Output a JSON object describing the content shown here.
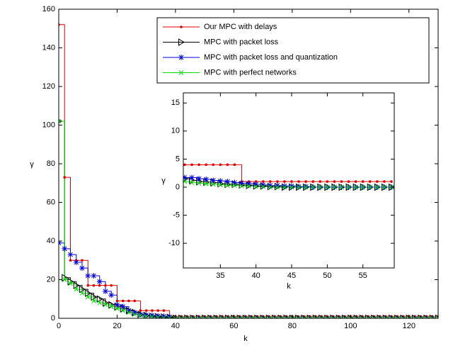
{
  "chart_data": [
    {
      "type": "line",
      "step": true,
      "xlabel": "k",
      "ylabel": "γ",
      "xlim": [
        0,
        130
      ],
      "ylim": [
        0,
        160
      ],
      "xticks": [
        0,
        20,
        40,
        60,
        80,
        100,
        120
      ],
      "yticks": [
        0,
        20,
        40,
        60,
        80,
        100,
        120,
        140,
        160
      ],
      "legend": "northeast",
      "x": [
        0,
        2,
        4,
        6,
        8,
        10,
        12,
        14,
        16,
        18,
        20,
        22,
        24,
        26,
        28,
        30,
        32,
        34,
        36,
        38,
        40,
        42,
        44,
        46,
        48,
        50,
        52,
        54,
        56,
        58,
        60,
        62,
        64,
        66,
        68,
        70,
        72,
        74,
        76,
        78,
        80,
        82,
        84,
        86,
        88,
        90,
        92,
        94,
        96,
        98,
        100,
        102,
        104,
        106,
        108,
        110,
        112,
        114,
        116,
        118,
        120,
        122,
        124,
        126,
        128,
        130
      ],
      "series": [
        {
          "name": "Our MPC with delays",
          "color": "#e00000",
          "marker": "dot",
          "values": [
            152,
            73,
            30,
            30,
            30,
            17,
            17,
            17,
            17,
            17,
            9,
            9,
            9,
            9,
            4,
            4,
            4,
            4,
            4,
            1,
            1,
            1,
            1,
            1,
            1,
            1,
            1,
            1,
            1,
            1,
            1,
            1,
            1,
            1,
            1,
            1,
            1,
            1,
            1,
            1,
            1,
            1,
            1,
            1,
            1,
            1,
            1,
            1,
            1,
            1,
            1,
            1,
            1,
            1,
            1,
            1,
            1,
            1,
            1,
            1,
            1,
            1,
            1,
            1,
            1,
            1
          ]
        },
        {
          "name": "MPC with packet loss",
          "color": "#000000",
          "marker": "triangle",
          "values": [
            102,
            21,
            19,
            17,
            15,
            13,
            11,
            10,
            8,
            7,
            6,
            5,
            4,
            3,
            2,
            1.5,
            1,
            0.8,
            0.6,
            0.5,
            0,
            0,
            0,
            0,
            0,
            0,
            0,
            0,
            0,
            0,
            0,
            0,
            0,
            0,
            0,
            0,
            0,
            0,
            0,
            0,
            0,
            0,
            0,
            0,
            0,
            0,
            0,
            0,
            0,
            0,
            0,
            0,
            0,
            0,
            0,
            0,
            0,
            0,
            0,
            0,
            0,
            0,
            0,
            0,
            0,
            0
          ]
        },
        {
          "name": "MPC with packet loss and quantization",
          "color": "#0000e0",
          "marker": "star",
          "values": [
            39,
            36,
            33,
            29,
            26,
            22,
            22,
            19,
            14,
            12,
            7,
            6,
            4,
            3,
            2,
            1.7,
            1.5,
            1.2,
            1,
            0.7,
            0,
            0,
            0,
            0,
            0,
            0,
            0,
            0,
            0,
            0,
            0,
            0,
            0,
            0,
            0,
            0,
            0,
            0,
            0,
            0,
            0,
            0,
            0,
            0,
            0,
            0,
            0,
            0,
            0,
            0,
            0,
            0,
            0,
            0,
            0,
            0,
            0,
            0,
            0,
            0,
            0,
            0,
            0,
            0,
            0,
            0
          ]
        },
        {
          "name": "MPC with perfect networks",
          "color": "#00dd00",
          "marker": "x",
          "values": [
            102,
            20,
            18,
            15,
            13,
            11,
            9,
            8,
            7,
            6,
            5,
            4,
            3,
            2,
            1.5,
            1,
            0.7,
            0.5,
            0.3,
            0.2,
            0,
            0,
            0,
            0,
            0,
            0,
            0,
            0,
            0,
            0,
            0,
            0,
            0,
            0,
            0,
            0,
            0,
            0,
            0,
            0,
            0,
            0,
            0,
            0,
            0,
            0,
            0,
            0,
            0,
            0,
            0,
            0,
            0,
            0,
            0,
            0,
            0,
            0,
            0,
            0,
            0,
            0,
            0,
            0,
            0,
            0
          ]
        }
      ]
    },
    {
      "type": "line",
      "step": true,
      "xlabel": "k",
      "ylabel": "γ",
      "xlim": [
        29.8,
        59.4
      ],
      "ylim": [
        -14.4,
        16.8
      ],
      "xticks": [
        35,
        40,
        45,
        50,
        55
      ],
      "yticks": [
        -10,
        -5,
        0,
        5,
        10,
        15
      ],
      "x": [
        30,
        31,
        32,
        33,
        34,
        35,
        36,
        37,
        38,
        39,
        40,
        41,
        42,
        43,
        44,
        45,
        46,
        47,
        48,
        49,
        50,
        51,
        52,
        53,
        54,
        55,
        56,
        57,
        58,
        59
      ],
      "series": [
        {
          "color": "#e00000",
          "marker": "dot",
          "values": [
            4,
            4,
            4,
            4,
            4,
            4,
            4,
            4,
            1,
            1,
            1,
            1,
            1,
            1,
            1,
            1,
            1,
            1,
            1,
            1,
            1,
            1,
            1,
            1,
            1,
            1,
            1,
            1,
            1,
            1
          ]
        },
        {
          "color": "#000000",
          "marker": "triangle",
          "values": [
            1.5,
            1.2,
            1,
            0.9,
            0.8,
            0.6,
            0.5,
            0.5,
            0.4,
            0.3,
            0.2,
            0.2,
            0.1,
            0.1,
            0,
            0,
            0,
            0,
            0,
            0,
            0,
            0,
            0,
            0,
            0,
            0,
            0,
            0,
            0,
            0
          ]
        },
        {
          "color": "#0000e0",
          "marker": "star",
          "values": [
            1.7,
            1.7,
            1.5,
            1.4,
            1.2,
            1.1,
            1,
            0.8,
            0.7,
            0.6,
            0.5,
            0.4,
            0.3,
            0.3,
            0.2,
            0.2,
            0.1,
            0.1,
            0,
            0,
            0,
            0,
            0,
            0,
            0,
            0,
            0,
            0,
            0,
            0
          ]
        },
        {
          "color": "#00dd00",
          "marker": "x",
          "values": [
            1,
            0.8,
            0.7,
            0.6,
            0.5,
            0.4,
            0.3,
            0.3,
            0.2,
            0.2,
            0.1,
            0.1,
            0,
            0,
            0,
            0,
            0,
            0,
            0,
            0,
            0,
            0,
            0,
            0,
            0,
            0,
            0,
            0,
            0,
            0
          ]
        }
      ]
    }
  ]
}
